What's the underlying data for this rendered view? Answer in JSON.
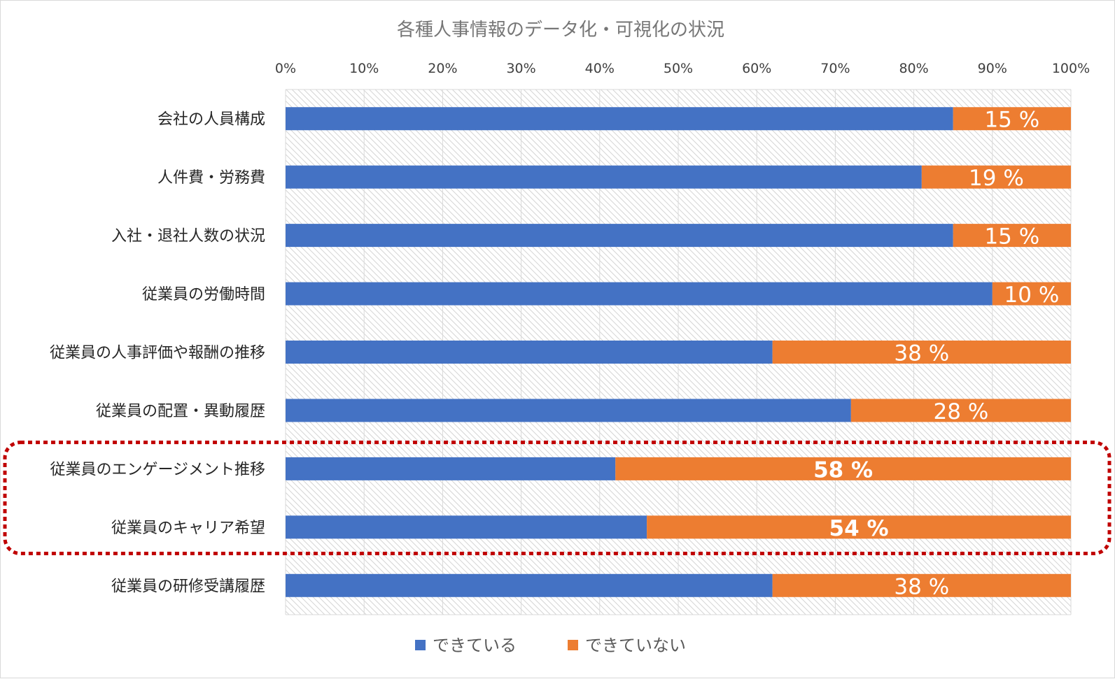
{
  "chart_data": {
    "type": "bar",
    "orientation": "horizontal",
    "stacked": "percent",
    "title": "各種人事情報のデータ化・可視化の状況",
    "x_ticks": [
      "0%",
      "10%",
      "20%",
      "30%",
      "40%",
      "50%",
      "60%",
      "70%",
      "80%",
      "90%",
      "100%"
    ],
    "xlim": [
      0,
      100
    ],
    "x_axis_position": "top",
    "grid": true,
    "legend_position": "bottom",
    "categories": [
      "会社の人員構成",
      "人件費・労務費",
      "入社・退社人数の状況",
      "従業員の労働時間",
      "従業員の人事評価や報酬の推移",
      "従業員の配置・異動履歴",
      "従業員のエンゲージメント推移",
      "従業員のキャリア希望",
      "従業員の研修受講履歴"
    ],
    "series": [
      {
        "name": "できている",
        "color": "#4472C4",
        "values": [
          85,
          81,
          85,
          90,
          62,
          72,
          42,
          46,
          62
        ]
      },
      {
        "name": "できていない",
        "color": "#ED7D31",
        "values": [
          15,
          19,
          15,
          10,
          38,
          28,
          58,
          54,
          38
        ]
      }
    ],
    "data_labels": [
      "15 %",
      "19 %",
      "15 %",
      "10 %",
      "38 %",
      "28 %",
      "58 %",
      "54 %",
      "38 %"
    ],
    "highlighted_categories": [
      "従業員のエンゲージメント推移",
      "従業員のキャリア希望"
    ],
    "highlight_color": "#C00000"
  }
}
